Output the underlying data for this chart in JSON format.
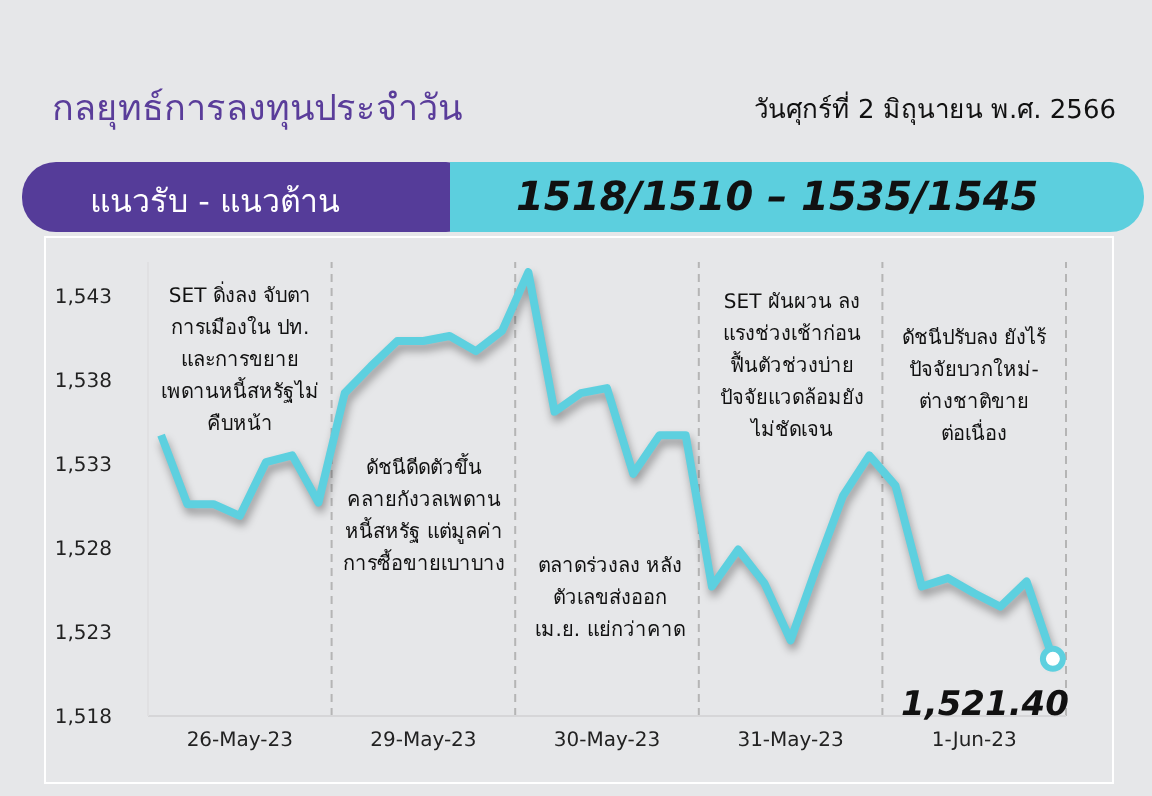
{
  "chart_data": {
    "type": "line",
    "title": "กลยุทธ์การลงทุนประจำวัน",
    "subtitle": "วันศุกร์ที่ 2 มิถุนายน พ.ศ. 2566",
    "annotations": [
      "แนวรับ - แนวต้าน",
      "1518/1510 – 1535/1545",
      "SET ดิ่งลง จับตา\nการเมืองใน ปท.\nและการขยาย\nเพดานหนี้สหรัฐไม่\nคืบหน้า",
      "ดัชนีดีดตัวขึ้น\nคลายกังวลเพดาน\nหนี้สหรัฐ แต่มูลค่า\nการซื้อขายเบาบาง",
      "ตลาดร่วงลง หลัง\nตัวเลขส่งออก\nเม.ย. แย่กว่าคาด",
      "SET ผันผวน ลง\nแรงช่วงเช้าก่อน\nฟื้นตัวช่วงบ่าย\nปัจจัยแวดล้อมยัง\nไม่ชัดเจน",
      "ดัชนีปรับลง ยังไร้\nปัจจัยบวกใหม่-\nต่างชาติขาย\nต่อเนื่อง"
    ],
    "categories": [
      null,
      null,
      null,
      "26-May-23",
      null,
      null,
      null,
      null,
      null,
      null,
      "29-May-23",
      null,
      null,
      null,
      null,
      null,
      null,
      "30-May-23",
      null,
      null,
      null,
      null,
      null,
      null,
      "31-May-23",
      null,
      null,
      null,
      null,
      null,
      null,
      "1-Jun-23",
      null,
      null,
      null
    ],
    "series": [
      {
        "color": "#5dd0df",
        "values": [
          1534.7,
          1530.6,
          1530.6,
          1529.9,
          1533.1,
          1533.5,
          1530.7,
          1537.2,
          1538.8,
          1540.3,
          1540.3,
          1540.6,
          1539.7,
          1540.9,
          1544.4,
          1536.1,
          1537.2,
          1537.5,
          1532.4,
          1534.7,
          1534.7,
          1525.7,
          1527.9,
          1525.9,
          1522.5,
          1526.9,
          1531.1,
          1533.5,
          1531.7,
          1525.7,
          1526.2,
          1525.3,
          1524.5,
          1526.0,
          1521.4
        ],
        "value_labels": [
          null,
          null,
          null,
          null,
          null,
          null,
          null,
          null,
          null,
          null,
          null,
          null,
          null,
          null,
          null,
          null,
          null,
          null,
          null,
          null,
          null,
          null,
          null,
          null,
          null,
          null,
          null,
          null,
          null,
          null,
          null,
          null,
          null,
          null,
          "1,521.40"
        ]
      }
    ],
    "ylim": [
      1518,
      1545
    ],
    "yticks": [
      {
        "value": 1518,
        "label": "1,518"
      },
      {
        "value": 1523,
        "label": "1,523"
      },
      {
        "value": 1528,
        "label": "1,528"
      },
      {
        "value": 1533,
        "label": "1,533"
      },
      {
        "value": 1538,
        "label": "1,538"
      },
      {
        "value": 1543,
        "label": "1,543"
      }
    ],
    "grid": false,
    "legend": false,
    "marker": "none",
    "line_style": "solid"
  }
}
